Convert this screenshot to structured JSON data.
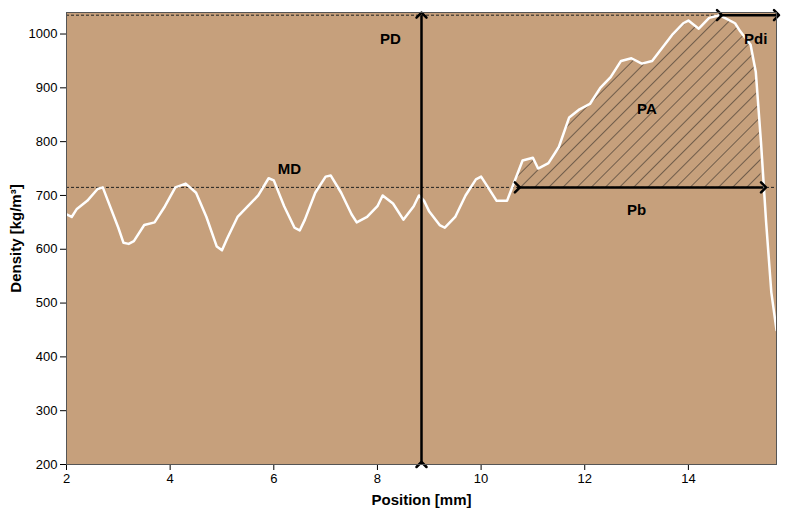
{
  "chart_data": {
    "type": "line",
    "xlabel": "Position [mm]",
    "ylabel": "Density [kg/m³]",
    "color": "#ffffff",
    "xlim": [
      2,
      15.7
    ],
    "ylim": [
      200,
      1040
    ],
    "xticks": [
      2,
      4,
      6,
      8,
      10,
      12,
      14
    ],
    "yticks": [
      200,
      300,
      400,
      500,
      600,
      700,
      800,
      900,
      1000
    ],
    "x": [
      2.0,
      2.1,
      2.2,
      2.4,
      2.6,
      2.7,
      2.8,
      3.0,
      3.1,
      3.2,
      3.3,
      3.5,
      3.7,
      3.9,
      4.1,
      4.3,
      4.5,
      4.7,
      4.9,
      5.0,
      5.1,
      5.3,
      5.5,
      5.7,
      5.9,
      6.0,
      6.2,
      6.4,
      6.5,
      6.6,
      6.8,
      7.0,
      7.1,
      7.3,
      7.5,
      7.6,
      7.8,
      8.0,
      8.1,
      8.3,
      8.5,
      8.7,
      8.8,
      8.9,
      9.0,
      9.2,
      9.3,
      9.5,
      9.7,
      9.9,
      10.0,
      10.1,
      10.3,
      10.5,
      10.7,
      10.8,
      11.0,
      11.1,
      11.3,
      11.5,
      11.7,
      11.9,
      12.1,
      12.3,
      12.5,
      12.7,
      12.9,
      13.1,
      13.3,
      13.5,
      13.7,
      13.9,
      14.0,
      14.2,
      14.4,
      14.6,
      14.7,
      14.9,
      15.0,
      15.2,
      15.3,
      15.4,
      15.5,
      15.6,
      15.7
    ],
    "values": [
      665,
      660,
      675,
      690,
      712,
      715,
      690,
      640,
      612,
      610,
      615,
      645,
      650,
      680,
      715,
      722,
      705,
      660,
      605,
      598,
      620,
      660,
      680,
      700,
      732,
      728,
      680,
      640,
      635,
      655,
      705,
      735,
      737,
      705,
      665,
      650,
      660,
      680,
      700,
      685,
      655,
      680,
      700,
      690,
      670,
      645,
      640,
      660,
      700,
      730,
      735,
      720,
      690,
      690,
      740,
      765,
      770,
      750,
      760,
      790,
      845,
      860,
      870,
      900,
      920,
      950,
      955,
      945,
      950,
      975,
      1000,
      1020,
      1025,
      1010,
      1030,
      1035,
      1030,
      1020,
      1005,
      980,
      930,
      800,
      650,
      520,
      450
    ],
    "reference_lines": [
      {
        "y": 715,
        "line_style": "dashed"
      },
      {
        "y": 1035,
        "line_style": "dashed"
      }
    ],
    "annotations": [
      {
        "text": "MD",
        "x": 6.3,
        "y": 748
      },
      {
        "text": "PD",
        "x": 8.25,
        "y": 990,
        "arrow": {
          "x1": 8.85,
          "y1": 200,
          "x2": 8.85,
          "y2": 1035
        }
      },
      {
        "text": "Pb",
        "x": 13.0,
        "y": 672,
        "arrow": {
          "x1": 10.7,
          "y1": 715,
          "x2": 15.45,
          "y2": 715
        }
      },
      {
        "text": "Pdi",
        "x": 15.3,
        "y": 990,
        "arrow": {
          "x1": 14.6,
          "y1": 1035,
          "x2": 15.7,
          "y2": 1035
        }
      },
      {
        "text": "PA",
        "x": 13.2,
        "y": 860,
        "area": {
          "from": 10.7,
          "to": 15.45,
          "base": 715
        }
      }
    ]
  }
}
